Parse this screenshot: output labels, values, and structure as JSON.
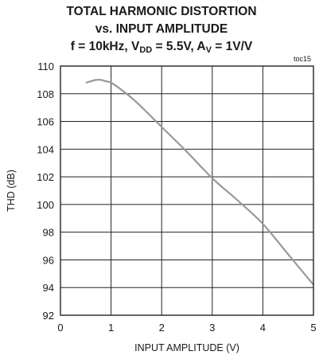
{
  "chart_data": {
    "type": "line",
    "title_lines": [
      "TOTAL HARMONIC DISTORTION",
      "vs. INPUT AMPLITUDE"
    ],
    "subtitle": {
      "f": "f = 10kHz, ",
      "vdd_main": "V",
      "vdd_sub": "DD",
      "vdd_rest": " = 5.5V, ",
      "av_main": "A",
      "av_sub": "V",
      "av_rest": " = 1V/V"
    },
    "figure_tag": "toc15",
    "xlabel": "INPUT AMPLITUDE (V)",
    "ylabel": "THD (dB)",
    "xlim": [
      0,
      5
    ],
    "ylim": [
      92,
      110
    ],
    "xticks": [
      0,
      1,
      2,
      3,
      4,
      5
    ],
    "yticks": [
      92,
      94,
      96,
      98,
      100,
      102,
      104,
      106,
      108,
      110
    ],
    "grid": true,
    "series": [
      {
        "x": [
          0.5,
          0.6,
          0.7,
          0.8,
          0.9,
          1.0,
          1.2,
          1.5,
          2.0,
          2.5,
          3.0,
          3.5,
          4.0,
          4.5,
          5.0
        ],
        "y": [
          108.8,
          108.9,
          109.0,
          109.0,
          108.9,
          108.8,
          108.3,
          107.4,
          105.6,
          103.8,
          101.9,
          100.3,
          98.6,
          96.4,
          94.2
        ]
      }
    ],
    "line_color": "#999999"
  }
}
